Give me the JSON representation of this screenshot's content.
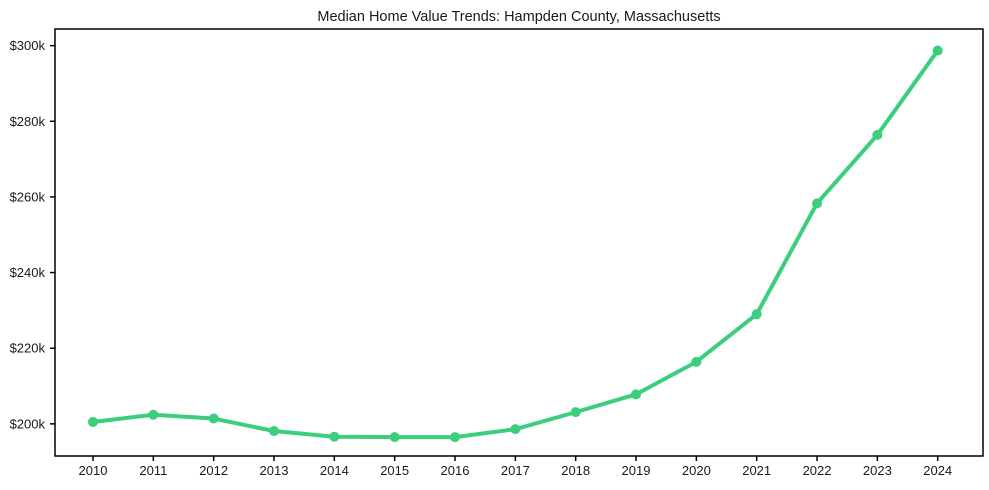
{
  "chart_data": {
    "type": "line",
    "title": "Median Home Value Trends: Hampden County, Massachusetts",
    "x": [
      2010,
      2011,
      2012,
      2013,
      2014,
      2015,
      2016,
      2017,
      2018,
      2019,
      2020,
      2021,
      2022,
      2023,
      2024
    ],
    "xtick_labels": [
      "2010",
      "2011",
      "2012",
      "2013",
      "2014",
      "2015",
      "2016",
      "2017",
      "2018",
      "2019",
      "2020",
      "2021",
      "2022",
      "2023",
      "2024"
    ],
    "series": [
      {
        "name": "Median home value",
        "values": [
          200500,
          202400,
          201400,
          198100,
          196600,
          196500,
          196500,
          198600,
          203100,
          207800,
          216400,
          229000,
          258300,
          276400,
          298700
        ]
      }
    ],
    "xlabel": "",
    "ylabel": "",
    "ylim": [
      191500,
      304400
    ],
    "yticks": [
      {
        "value": 200000,
        "label": "$200k"
      },
      {
        "value": 220000,
        "label": "$220k"
      },
      {
        "value": 240000,
        "label": "$240k"
      },
      {
        "value": 260000,
        "label": "$260k"
      },
      {
        "value": 280000,
        "label": "$280k"
      },
      {
        "value": 300000,
        "label": "$300k"
      }
    ],
    "grid": false,
    "legend": "none",
    "line_color": "#3bce7e",
    "marker": "circle",
    "frame_color": "#000000",
    "text_color": "#1a1a1a",
    "background": "#ffffff"
  }
}
